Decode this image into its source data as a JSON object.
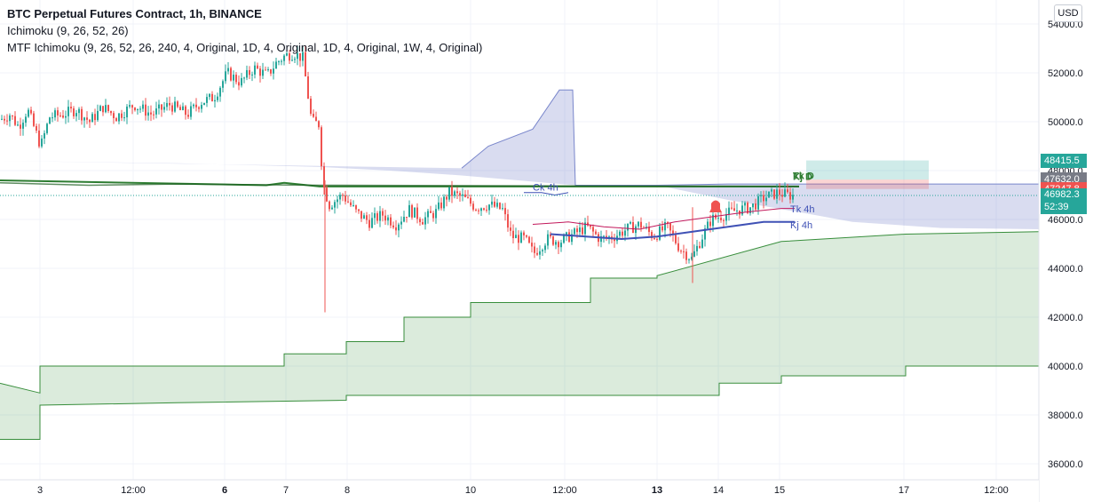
{
  "legend": {
    "title": "BTC Perpetual Futures Contract, 1h, BINANCE",
    "ichimoku": "Ichimoku (9, 26, 52, 26)",
    "mtf": "MTF Ichimoku (9, 26, 52, 26, 240, 4, Original, 1D, 4, Original, 1D, 4, Original, 1W, 4, Original)"
  },
  "currency_button": "USD",
  "price_tags": {
    "high": "48415.5",
    "mid": "47632.0",
    "low": "47247.8",
    "last": "46982.3",
    "countdown": "52:39"
  },
  "colors": {
    "up": "#26a69a",
    "down": "#ef5350",
    "tenkan": "#c2185b",
    "kijun": "#3f51b5",
    "chikou": "#43a047",
    "kumo_bull": "#388e3c",
    "kumo_bear": "#3f51b5",
    "tag_green": "#26a69a",
    "tag_gray": "#787b86",
    "tag_red": "#ef5350"
  },
  "chart_data": {
    "type": "candlestick",
    "y_ticks": [
      "54000.0",
      "52000.0",
      "50000.0",
      "48000.0",
      "46000.0",
      "44000.0",
      "42000.0",
      "40000.0",
      "38000.0",
      "36000.0"
    ],
    "y_tick_values": [
      54000,
      52000,
      50000,
      48000,
      46000,
      44000,
      42000,
      40000,
      38000,
      36000
    ],
    "ylim": [
      35500,
      54400
    ],
    "x_ticks": [
      {
        "label": "3",
        "bold": false
      },
      {
        "label": "12:00",
        "bold": false
      },
      {
        "label": "6",
        "bold": true
      },
      {
        "label": "7",
        "bold": false
      },
      {
        "label": "8",
        "bold": false
      },
      {
        "label": "10",
        "bold": false
      },
      {
        "label": "12:00",
        "bold": false
      },
      {
        "label": "13",
        "bold": true
      },
      {
        "label": "14",
        "bold": false
      },
      {
        "label": "15",
        "bold": false
      },
      {
        "label": "17",
        "bold": false
      },
      {
        "label": "12:00",
        "bold": false
      }
    ],
    "close_path": [
      [
        0,
        50100
      ],
      [
        10,
        50300
      ],
      [
        20,
        49800
      ],
      [
        30,
        50500
      ],
      [
        45,
        49000
      ],
      [
        55,
        50200
      ],
      [
        70,
        50300
      ],
      [
        85,
        50500
      ],
      [
        100,
        50000
      ],
      [
        115,
        50600
      ],
      [
        130,
        50200
      ],
      [
        150,
        50700
      ],
      [
        170,
        50300
      ],
      [
        190,
        50700
      ],
      [
        210,
        50300
      ],
      [
        225,
        50800
      ],
      [
        240,
        51000
      ],
      [
        255,
        52000
      ],
      [
        270,
        51600
      ],
      [
        285,
        52200
      ],
      [
        300,
        51900
      ],
      [
        310,
        52400
      ],
      [
        320,
        52700
      ],
      [
        330,
        52800
      ],
      [
        340,
        52600
      ],
      [
        350,
        50000
      ],
      [
        358,
        49900
      ],
      [
        363,
        47400
      ],
      [
        370,
        46600
      ],
      [
        385,
        47000
      ],
      [
        400,
        46300
      ],
      [
        415,
        45900
      ],
      [
        430,
        46200
      ],
      [
        445,
        45800
      ],
      [
        460,
        46400
      ],
      [
        475,
        46000
      ],
      [
        490,
        46300
      ],
      [
        505,
        47100
      ],
      [
        520,
        46900
      ],
      [
        535,
        46500
      ],
      [
        550,
        46600
      ],
      [
        565,
        46400
      ],
      [
        575,
        45300
      ],
      [
        590,
        45200
      ],
      [
        600,
        44600
      ],
      [
        615,
        45200
      ],
      [
        630,
        45100
      ],
      [
        645,
        45400
      ],
      [
        660,
        45700
      ],
      [
        675,
        45200
      ],
      [
        690,
        45300
      ],
      [
        705,
        45600
      ],
      [
        720,
        45800
      ],
      [
        735,
        45300
      ],
      [
        750,
        45700
      ],
      [
        765,
        44800
      ],
      [
        778,
        44400
      ],
      [
        790,
        45300
      ],
      [
        800,
        46000
      ],
      [
        815,
        46200
      ],
      [
        830,
        46400
      ],
      [
        845,
        46500
      ],
      [
        860,
        46900
      ],
      [
        875,
        47100
      ],
      [
        885,
        47000
      ],
      [
        893,
        46980
      ]
    ],
    "series": [
      {
        "name": "Tk 4h",
        "path": [
          [
            600,
            45800
          ],
          [
            640,
            45900
          ],
          [
            680,
            45700
          ],
          [
            720,
            45600
          ],
          [
            760,
            45900
          ],
          [
            800,
            46100
          ],
          [
            840,
            46300
          ],
          [
            880,
            46450
          ],
          [
            895,
            46450
          ]
        ]
      },
      {
        "name": "Kj 4h",
        "path": [
          [
            620,
            45400
          ],
          [
            660,
            45300
          ],
          [
            700,
            45200
          ],
          [
            740,
            45300
          ],
          [
            780,
            45500
          ],
          [
            820,
            45700
          ],
          [
            860,
            45900
          ],
          [
            895,
            45900
          ]
        ]
      },
      {
        "name": "Ck 4h",
        "path": [
          [
            590,
            47100
          ],
          [
            610,
            47100
          ],
          [
            625,
            47000
          ],
          [
            640,
            47100
          ]
        ]
      },
      {
        "name": "Tk D",
        "path": [
          [
            0,
            47600
          ],
          [
            300,
            47400
          ],
          [
            320,
            47500
          ],
          [
            360,
            47350
          ],
          [
            900,
            47350
          ]
        ]
      },
      {
        "name": "Kj D",
        "path": [
          [
            0,
            47500
          ],
          [
            100,
            47400
          ],
          [
            200,
            47450
          ],
          [
            360,
            47400
          ],
          [
            900,
            47350
          ]
        ]
      }
    ],
    "labels": [
      {
        "text": "Ck 4h",
        "x": 600,
        "y": 47180
      },
      {
        "text": "Tk 4h",
        "x": 890,
        "y": 46290
      },
      {
        "text": "Kj 4h",
        "x": 890,
        "y": 45640
      },
      {
        "text": "Tk D",
        "x": 893,
        "y": 47660
      },
      {
        "text": "Kj D",
        "x": 893,
        "y": 47620
      }
    ],
    "weekly_kumo": [
      [
        0,
        39300
      ],
      [
        45,
        38900
      ],
      [
        45,
        40000
      ],
      [
        200,
        40000
      ],
      [
        320,
        40000
      ],
      [
        320,
        40500
      ],
      [
        390,
        40500
      ],
      [
        390,
        41000
      ],
      [
        455,
        41000
      ],
      [
        455,
        42000
      ],
      [
        530,
        42000
      ],
      [
        530,
        42600
      ],
      [
        665,
        42600
      ],
      [
        665,
        43600
      ],
      [
        740,
        43600
      ],
      [
        740,
        43700
      ],
      [
        880,
        45100
      ],
      [
        1020,
        45400
      ],
      [
        1170,
        45500
      ]
    ],
    "weekly_kumo_bottom": [
      [
        0,
        37000
      ],
      [
        45,
        37000
      ],
      [
        45,
        38400
      ],
      [
        200,
        38500
      ],
      [
        390,
        38600
      ],
      [
        390,
        38800
      ],
      [
        665,
        38800
      ],
      [
        810,
        38800
      ],
      [
        810,
        39300
      ],
      [
        880,
        39300
      ],
      [
        880,
        39600
      ],
      [
        1020,
        39600
      ],
      [
        1020,
        40000
      ],
      [
        1170,
        40000
      ]
    ],
    "daily_kumo_top": [
      [
        520,
        48100
      ],
      [
        550,
        49000
      ],
      [
        600,
        49700
      ],
      [
        630,
        51300
      ],
      [
        645,
        51300
      ],
      [
        648,
        47400
      ],
      [
        740,
        47400
      ],
      [
        820,
        47450
      ],
      [
        1170,
        47450
      ]
    ],
    "daily_kumo_bottom": [
      [
        0,
        48400
      ],
      [
        200,
        48300
      ],
      [
        360,
        48150
      ],
      [
        440,
        48000
      ],
      [
        520,
        47800
      ],
      [
        648,
        47400
      ],
      [
        740,
        47400
      ],
      [
        820,
        46800
      ],
      [
        900,
        46300
      ],
      [
        960,
        45900
      ],
      [
        1060,
        45650
      ],
      [
        1170,
        45600
      ]
    ],
    "position_box": {
      "entry": 47632.0,
      "target": 48415.5,
      "stop": 47247.8,
      "x_start": 908,
      "x_end": 1046
    },
    "last_price": 46982.3
  }
}
